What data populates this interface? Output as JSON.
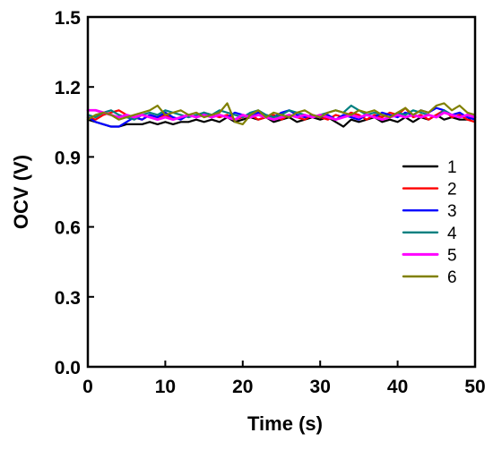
{
  "chart_data": {
    "type": "line",
    "title": "",
    "xlabel": "Time (s)",
    "ylabel": "OCV (V)",
    "xlim": [
      0,
      50
    ],
    "ylim": [
      0,
      1.5
    ],
    "xticks": [
      0,
      10,
      20,
      30,
      40,
      50
    ],
    "yticks": [
      0.0,
      0.3,
      0.6,
      0.9,
      1.2,
      1.5
    ],
    "xtick_labels": [
      "0",
      "10",
      "20",
      "30",
      "40",
      "50"
    ],
    "ytick_labels": [
      "0.0",
      "0.3",
      "0.6",
      "0.9",
      "1.2",
      "1.5"
    ],
    "grid": false,
    "legend_position": "right",
    "x": [
      0,
      1,
      2,
      3,
      4,
      5,
      6,
      7,
      8,
      9,
      10,
      11,
      12,
      13,
      14,
      15,
      16,
      17,
      18,
      19,
      20,
      21,
      22,
      23,
      24,
      25,
      26,
      27,
      28,
      29,
      30,
      31,
      32,
      33,
      34,
      35,
      36,
      37,
      38,
      39,
      40,
      41,
      42,
      43,
      44,
      45,
      46,
      47,
      48,
      49,
      50
    ],
    "series": [
      {
        "name": "1",
        "color": "#000000",
        "values": [
          1.06,
          1.05,
          1.04,
          1.03,
          1.03,
          1.04,
          1.04,
          1.04,
          1.05,
          1.04,
          1.05,
          1.04,
          1.05,
          1.05,
          1.06,
          1.05,
          1.06,
          1.05,
          1.07,
          1.05,
          1.06,
          1.07,
          1.06,
          1.07,
          1.05,
          1.06,
          1.07,
          1.05,
          1.06,
          1.07,
          1.06,
          1.07,
          1.05,
          1.03,
          1.06,
          1.05,
          1.06,
          1.07,
          1.05,
          1.06,
          1.05,
          1.07,
          1.05,
          1.07,
          1.06,
          1.08,
          1.06,
          1.07,
          1.06,
          1.06,
          1.07
        ]
      },
      {
        "name": "2",
        "color": "#ff0000",
        "values": [
          1.07,
          1.06,
          1.08,
          1.09,
          1.1,
          1.08,
          1.07,
          1.06,
          1.08,
          1.07,
          1.08,
          1.06,
          1.07,
          1.08,
          1.07,
          1.09,
          1.08,
          1.07,
          1.08,
          1.06,
          1.07,
          1.08,
          1.06,
          1.07,
          1.08,
          1.06,
          1.08,
          1.07,
          1.06,
          1.08,
          1.07,
          1.06,
          1.08,
          1.07,
          1.09,
          1.08,
          1.06,
          1.08,
          1.07,
          1.09,
          1.08,
          1.11,
          1.07,
          1.08,
          1.06,
          1.08,
          1.1,
          1.07,
          1.08,
          1.06,
          1.05
        ]
      },
      {
        "name": "3",
        "color": "#0000ff",
        "values": [
          1.07,
          1.05,
          1.04,
          1.03,
          1.03,
          1.05,
          1.07,
          1.06,
          1.08,
          1.07,
          1.09,
          1.07,
          1.06,
          1.08,
          1.07,
          1.09,
          1.07,
          1.08,
          1.07,
          1.09,
          1.08,
          1.07,
          1.09,
          1.08,
          1.07,
          1.09,
          1.1,
          1.08,
          1.07,
          1.08,
          1.07,
          1.08,
          1.06,
          1.08,
          1.07,
          1.06,
          1.08,
          1.07,
          1.09,
          1.08,
          1.07,
          1.09,
          1.08,
          1.1,
          1.09,
          1.11,
          1.1,
          1.08,
          1.09,
          1.07,
          1.06
        ]
      },
      {
        "name": "4",
        "color": "#008080",
        "values": [
          1.08,
          1.07,
          1.09,
          1.1,
          1.08,
          1.07,
          1.06,
          1.08,
          1.09,
          1.08,
          1.1,
          1.09,
          1.08,
          1.07,
          1.08,
          1.09,
          1.08,
          1.1,
          1.09,
          1.08,
          1.07,
          1.09,
          1.1,
          1.08,
          1.07,
          1.08,
          1.1,
          1.09,
          1.08,
          1.07,
          1.08,
          1.09,
          1.1,
          1.09,
          1.12,
          1.1,
          1.08,
          1.09,
          1.08,
          1.07,
          1.09,
          1.08,
          1.1,
          1.09,
          1.08,
          1.07,
          1.1,
          1.08,
          1.07,
          1.08,
          1.07
        ]
      },
      {
        "name": "5",
        "color": "#ff00ff",
        "values": [
          1.1,
          1.1,
          1.09,
          1.08,
          1.07,
          1.08,
          1.07,
          1.08,
          1.07,
          1.06,
          1.07,
          1.06,
          1.07,
          1.08,
          1.07,
          1.08,
          1.07,
          1.08,
          1.07,
          1.06,
          1.08,
          1.07,
          1.08,
          1.07,
          1.06,
          1.07,
          1.08,
          1.07,
          1.08,
          1.07,
          1.08,
          1.07,
          1.06,
          1.07,
          1.08,
          1.07,
          1.08,
          1.07,
          1.06,
          1.07,
          1.08,
          1.07,
          1.08,
          1.07,
          1.08,
          1.07,
          1.09,
          1.08,
          1.07,
          1.08,
          1.07
        ]
      },
      {
        "name": "6",
        "color": "#808000",
        "values": [
          1.06,
          1.08,
          1.09,
          1.08,
          1.06,
          1.07,
          1.08,
          1.09,
          1.1,
          1.12,
          1.08,
          1.09,
          1.1,
          1.08,
          1.09,
          1.07,
          1.08,
          1.09,
          1.13,
          1.05,
          1.04,
          1.08,
          1.1,
          1.07,
          1.09,
          1.08,
          1.07,
          1.09,
          1.1,
          1.08,
          1.07,
          1.09,
          1.1,
          1.09,
          1.08,
          1.1,
          1.09,
          1.1,
          1.08,
          1.07,
          1.09,
          1.11,
          1.08,
          1.1,
          1.09,
          1.12,
          1.13,
          1.1,
          1.12,
          1.09,
          1.08
        ]
      }
    ]
  }
}
